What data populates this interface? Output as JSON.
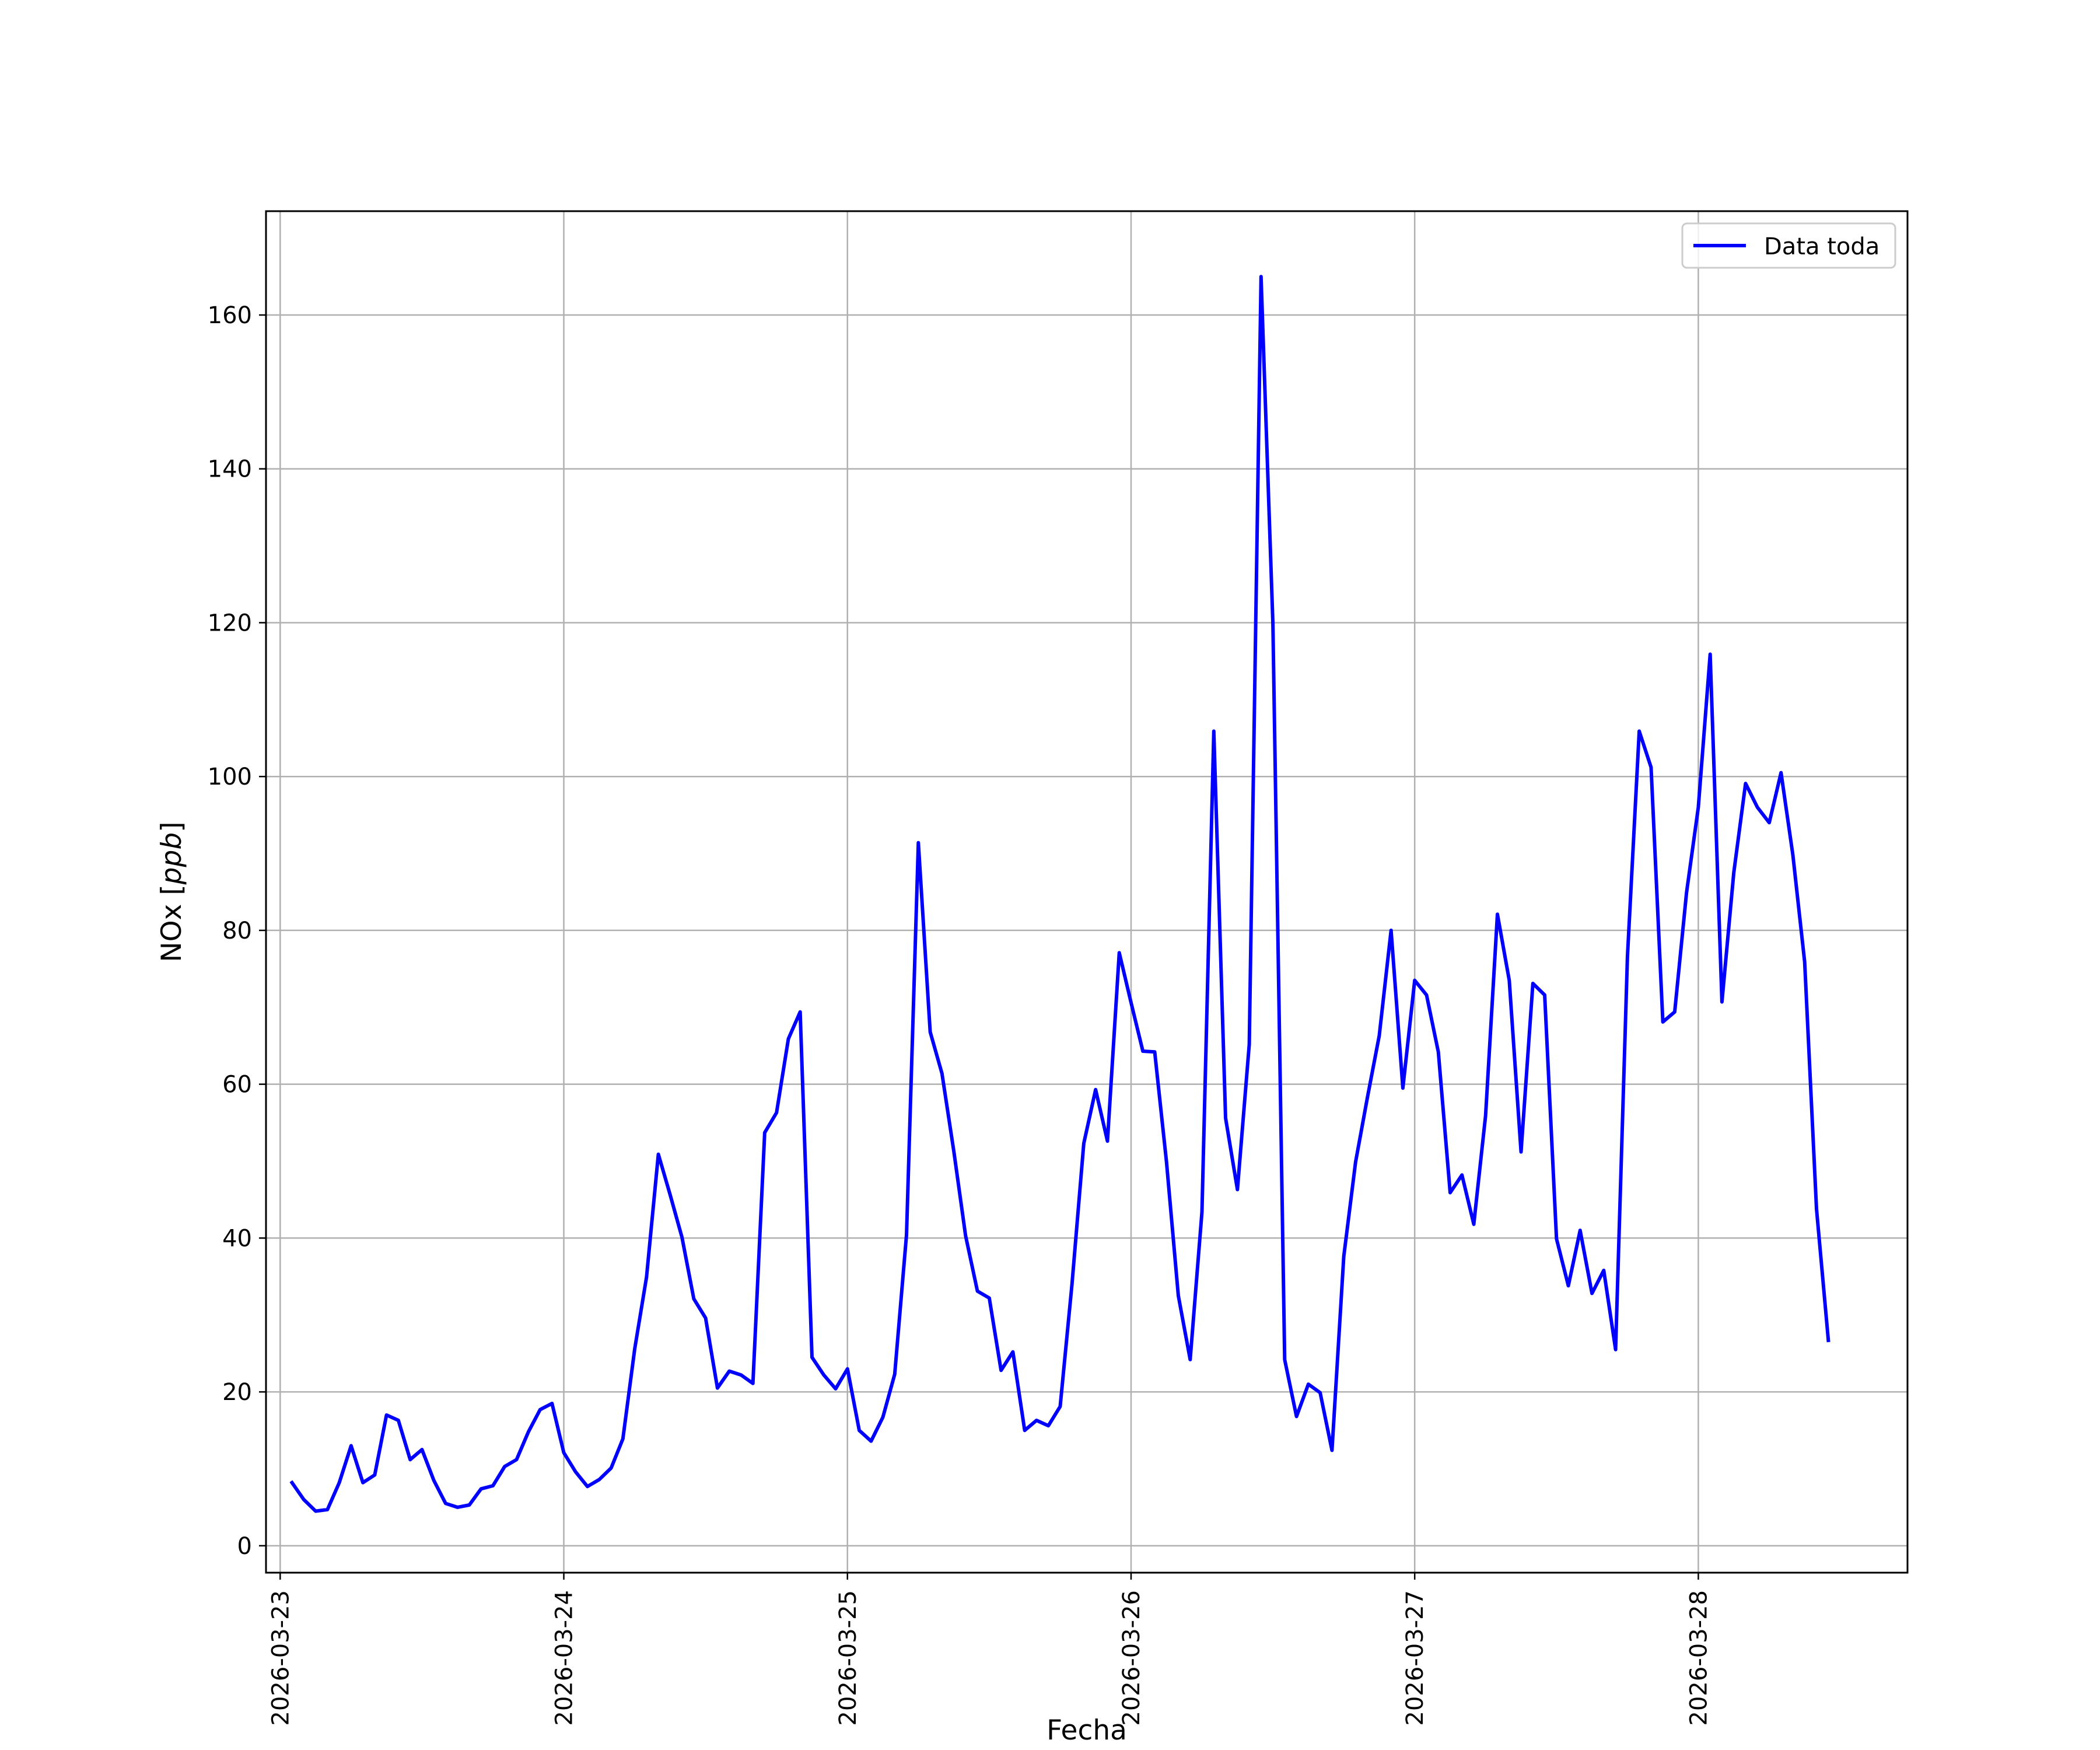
{
  "chart_data": {
    "type": "line",
    "title": "",
    "xlabel": "Fecha",
    "ylabel": "NOx",
    "ylabel_unit": "ppb",
    "xlim": [
      "2026-03-22T22:48",
      "2026-03-28T17:42"
    ],
    "ylim": [
      -3.5,
      173.5
    ],
    "x_tick_labels": [
      "2026-03-23",
      "2026-03-24",
      "2026-03-25",
      "2026-03-26",
      "2026-03-27",
      "2026-03-28"
    ],
    "y_ticks": [
      0,
      20,
      40,
      60,
      80,
      100,
      120,
      140,
      160
    ],
    "grid": true,
    "legend_position": "top-right",
    "x_start": "2026-03-23T01:00",
    "x_step_hours": 1,
    "series": [
      {
        "name": "Data toda",
        "color": "#0000ff",
        "values": [
          8.2,
          6,
          4.5,
          4.7,
          8.2,
          13,
          8.2,
          9.2,
          17,
          16.3,
          11.2,
          12.5,
          8.5,
          5.5,
          5,
          5.3,
          7.4,
          7.8,
          10.3,
          11.2,
          14.8,
          17.7,
          18.5,
          12.1,
          9.6,
          7.7,
          8.6,
          10.1,
          13.9,
          25.6,
          34.9,
          50.9,
          45.6,
          40.1,
          32.1,
          29.6,
          20.5,
          22.7,
          22.2,
          21.1,
          53.7,
          56.3,
          65.9,
          69.4,
          24.5,
          22.2,
          20.4,
          23,
          15,
          13.6,
          16.7,
          22.3,
          40.4,
          91.4,
          66.8,
          61.4,
          51.3,
          40.3,
          33.1,
          32.2,
          22.8,
          25.2,
          15,
          16.3,
          15.6,
          18.1,
          34,
          52.3,
          59.3,
          52.6,
          77.1,
          70.6,
          64.3,
          64.2,
          49.9,
          32.5,
          24.2,
          43.4,
          105.9,
          55.6,
          46.3,
          65.2,
          165,
          119.9,
          24.2,
          16.8,
          21,
          19.9,
          12.4,
          37.6,
          49.9,
          58.3,
          66.3,
          80,
          59.5,
          73.5,
          71.6,
          64.2,
          45.9,
          48.2,
          41.8,
          55.9,
          82.1,
          73.5,
          51.2,
          73.1,
          71.6,
          39.9,
          33.8,
          41,
          32.8,
          35.8,
          25.5,
          76.6,
          105.9,
          101.2,
          68.1,
          69.4,
          84.9,
          96,
          115.9,
          70.7,
          87.5,
          99.1,
          96,
          94,
          100.5,
          89.8,
          75.9,
          43.8,
          26.7
        ]
      }
    ]
  }
}
